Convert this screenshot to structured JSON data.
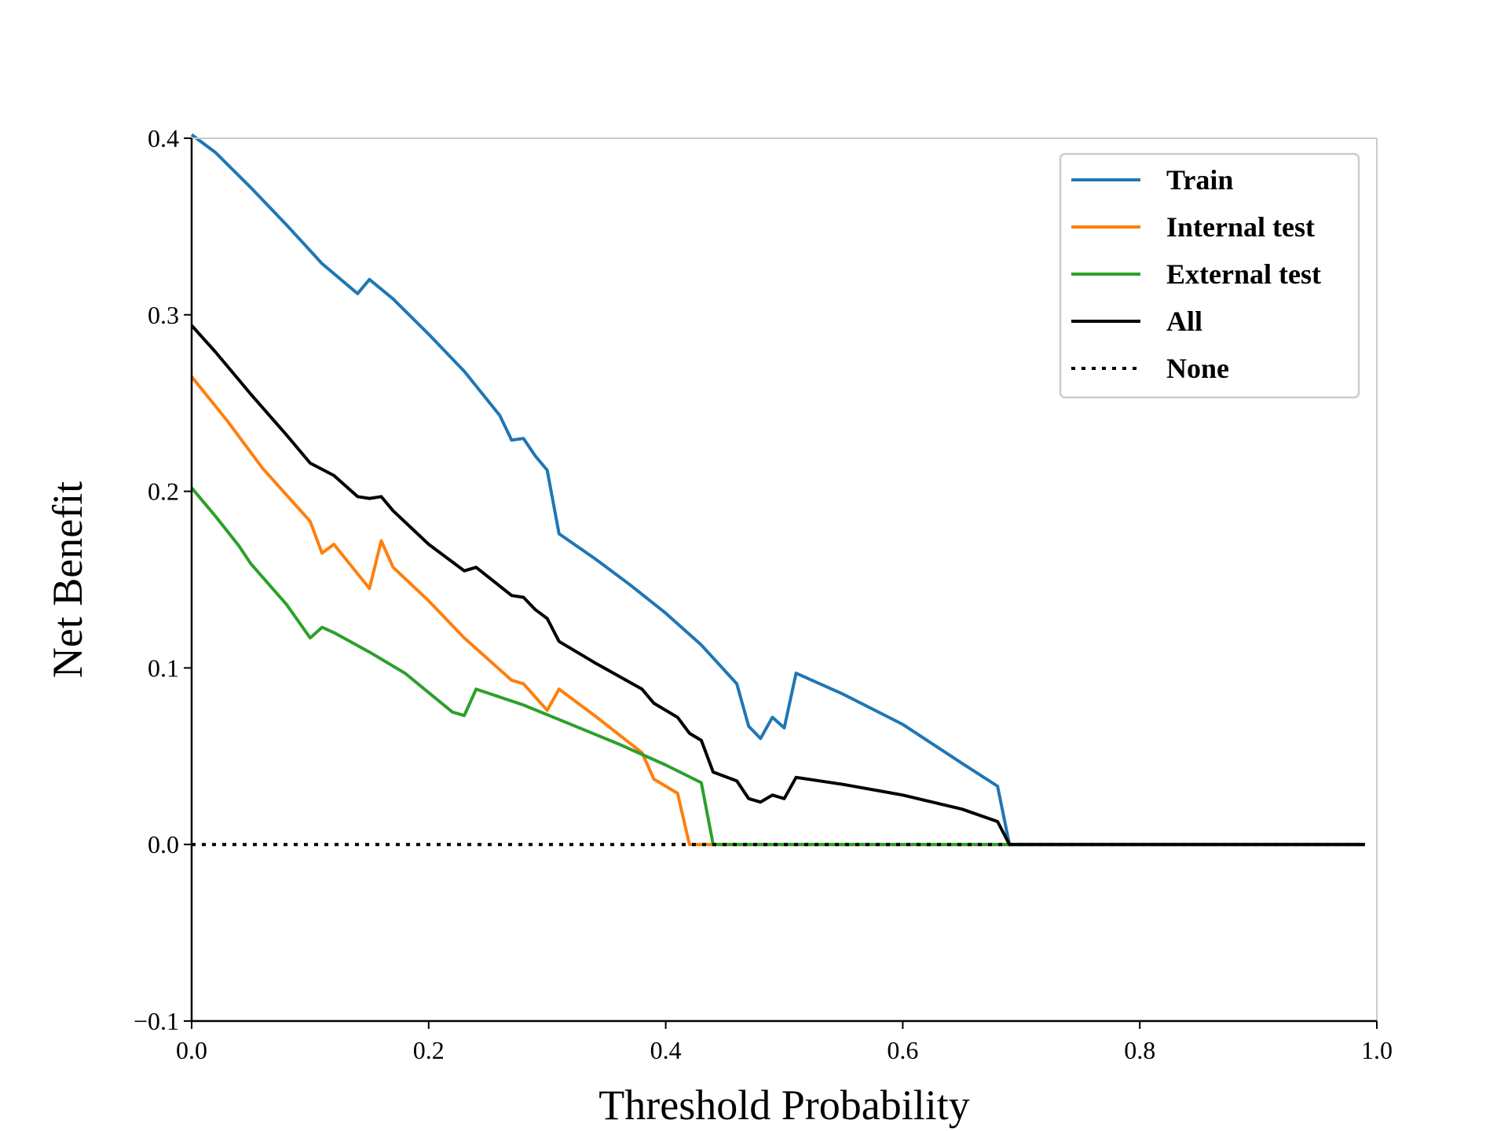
{
  "chart_data": {
    "type": "line",
    "title": "",
    "xlabel": "Threshold Probability",
    "ylabel": "Net Benefit",
    "xlim": [
      0.0,
      1.0
    ],
    "ylim": [
      -0.1,
      0.4
    ],
    "xticks": [
      "0.0",
      "0.2",
      "0.4",
      "0.6",
      "0.8",
      "1.0"
    ],
    "yticks": [
      "−0.1",
      "0.0",
      "0.1",
      "0.2",
      "0.3",
      "0.4"
    ],
    "xtick_values": [
      0.0,
      0.2,
      0.4,
      0.6,
      0.8,
      1.0
    ],
    "ytick_values": [
      -0.1,
      0.0,
      0.1,
      0.2,
      0.3,
      0.4
    ],
    "grid": false,
    "legend_position": "top-right",
    "series": [
      {
        "name": "Train",
        "color": "#1f77b4",
        "style": "solid",
        "points": [
          [
            0.0,
            0.402
          ],
          [
            0.02,
            0.392
          ],
          [
            0.05,
            0.372
          ],
          [
            0.08,
            0.351
          ],
          [
            0.11,
            0.329
          ],
          [
            0.14,
            0.312
          ],
          [
            0.15,
            0.32
          ],
          [
            0.17,
            0.309
          ],
          [
            0.2,
            0.289
          ],
          [
            0.23,
            0.268
          ],
          [
            0.26,
            0.243
          ],
          [
            0.27,
            0.229
          ],
          [
            0.28,
            0.23
          ],
          [
            0.29,
            0.22
          ],
          [
            0.3,
            0.212
          ],
          [
            0.31,
            0.176
          ],
          [
            0.34,
            0.162
          ],
          [
            0.37,
            0.147
          ],
          [
            0.4,
            0.131
          ],
          [
            0.43,
            0.113
          ],
          [
            0.46,
            0.091
          ],
          [
            0.47,
            0.067
          ],
          [
            0.48,
            0.06
          ],
          [
            0.49,
            0.072
          ],
          [
            0.5,
            0.066
          ],
          [
            0.51,
            0.097
          ],
          [
            0.55,
            0.085
          ],
          [
            0.6,
            0.068
          ],
          [
            0.65,
            0.046
          ],
          [
            0.68,
            0.033
          ],
          [
            0.69,
            0.0
          ],
          [
            0.99,
            0.0
          ]
        ]
      },
      {
        "name": "Internal test",
        "color": "#ff7f0e",
        "style": "solid",
        "points": [
          [
            0.0,
            0.265
          ],
          [
            0.03,
            0.24
          ],
          [
            0.06,
            0.213
          ],
          [
            0.1,
            0.183
          ],
          [
            0.11,
            0.165
          ],
          [
            0.12,
            0.17
          ],
          [
            0.15,
            0.145
          ],
          [
            0.16,
            0.172
          ],
          [
            0.17,
            0.157
          ],
          [
            0.2,
            0.138
          ],
          [
            0.23,
            0.117
          ],
          [
            0.27,
            0.093
          ],
          [
            0.28,
            0.091
          ],
          [
            0.3,
            0.076
          ],
          [
            0.31,
            0.088
          ],
          [
            0.34,
            0.073
          ],
          [
            0.38,
            0.052
          ],
          [
            0.39,
            0.037
          ],
          [
            0.41,
            0.029
          ],
          [
            0.42,
            0.0
          ],
          [
            0.99,
            0.0
          ]
        ]
      },
      {
        "name": "External test",
        "color": "#2ca02c",
        "style": "solid",
        "points": [
          [
            0.0,
            0.202
          ],
          [
            0.02,
            0.186
          ],
          [
            0.04,
            0.169
          ],
          [
            0.05,
            0.159
          ],
          [
            0.08,
            0.136
          ],
          [
            0.1,
            0.117
          ],
          [
            0.11,
            0.123
          ],
          [
            0.12,
            0.12
          ],
          [
            0.15,
            0.109
          ],
          [
            0.18,
            0.097
          ],
          [
            0.22,
            0.075
          ],
          [
            0.23,
            0.073
          ],
          [
            0.24,
            0.088
          ],
          [
            0.28,
            0.079
          ],
          [
            0.32,
            0.068
          ],
          [
            0.36,
            0.057
          ],
          [
            0.4,
            0.045
          ],
          [
            0.43,
            0.035
          ],
          [
            0.44,
            0.0
          ],
          [
            0.99,
            0.0
          ]
        ]
      },
      {
        "name": "All",
        "color": "#000000",
        "style": "solid",
        "points": [
          [
            0.0,
            0.294
          ],
          [
            0.02,
            0.279
          ],
          [
            0.04,
            0.263
          ],
          [
            0.05,
            0.255
          ],
          [
            0.08,
            0.232
          ],
          [
            0.1,
            0.216
          ],
          [
            0.12,
            0.209
          ],
          [
            0.14,
            0.197
          ],
          [
            0.15,
            0.196
          ],
          [
            0.16,
            0.197
          ],
          [
            0.17,
            0.189
          ],
          [
            0.2,
            0.17
          ],
          [
            0.22,
            0.16
          ],
          [
            0.23,
            0.155
          ],
          [
            0.24,
            0.157
          ],
          [
            0.27,
            0.141
          ],
          [
            0.28,
            0.14
          ],
          [
            0.29,
            0.133
          ],
          [
            0.3,
            0.128
          ],
          [
            0.31,
            0.115
          ],
          [
            0.34,
            0.103
          ],
          [
            0.38,
            0.088
          ],
          [
            0.39,
            0.08
          ],
          [
            0.41,
            0.072
          ],
          [
            0.42,
            0.063
          ],
          [
            0.43,
            0.059
          ],
          [
            0.44,
            0.041
          ],
          [
            0.46,
            0.036
          ],
          [
            0.47,
            0.026
          ],
          [
            0.48,
            0.024
          ],
          [
            0.49,
            0.028
          ],
          [
            0.5,
            0.026
          ],
          [
            0.51,
            0.038
          ],
          [
            0.55,
            0.034
          ],
          [
            0.6,
            0.028
          ],
          [
            0.65,
            0.02
          ],
          [
            0.68,
            0.013
          ],
          [
            0.69,
            0.0
          ],
          [
            0.99,
            0.0
          ]
        ]
      },
      {
        "name": "None",
        "color": "#000000",
        "style": "dotted",
        "points": [
          [
            0.0,
            0.0
          ],
          [
            0.99,
            0.0
          ]
        ]
      }
    ]
  }
}
